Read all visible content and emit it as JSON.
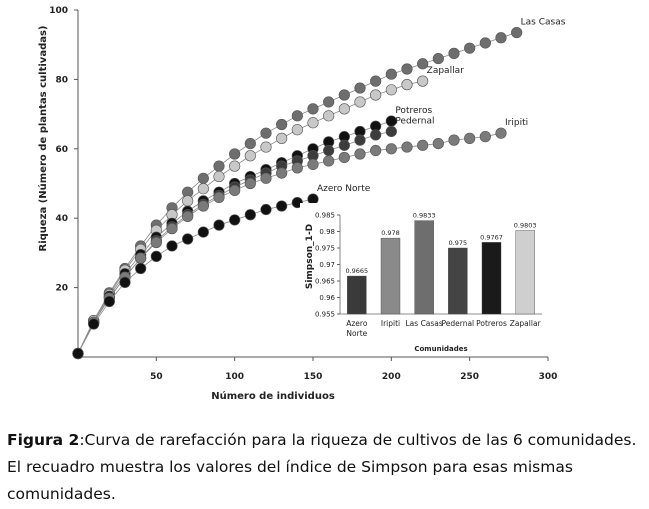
{
  "chart_data": [
    {
      "type": "scatter",
      "xlabel": "Número de individuos",
      "ylabel": "Riqueza (Número de plantas cultivadas)",
      "xlim": [
        0,
        300
      ],
      "ylim": [
        0,
        100
      ],
      "x_ticks": [
        "50",
        "100",
        "150",
        "200",
        "250",
        "300"
      ],
      "y_ticks": [
        "20",
        "40",
        "60",
        "80",
        "100"
      ],
      "grid": false,
      "series": [
        {
          "name": "Las Casas",
          "color": "#6e6e6e",
          "x": [
            0,
            10,
            20,
            30,
            40,
            50,
            60,
            70,
            80,
            90,
            100,
            110,
            120,
            130,
            140,
            150,
            160,
            170,
            180,
            190,
            200,
            210,
            220,
            230,
            240,
            250,
            260,
            270,
            280
          ],
          "y": [
            1,
            10.5,
            18.5,
            25.5,
            32,
            38,
            43,
            47.5,
            51.5,
            55,
            58.5,
            61.5,
            64.5,
            67,
            69.5,
            71.5,
            73.5,
            75.5,
            77.5,
            79.5,
            81.5,
            83,
            84.5,
            86,
            87.5,
            89,
            90.5,
            92,
            93.5
          ]
        },
        {
          "name": "Zapallar",
          "color": "#c8c8c8",
          "x": [
            0,
            10,
            20,
            30,
            40,
            50,
            60,
            70,
            80,
            90,
            100,
            110,
            120,
            130,
            140,
            150,
            160,
            170,
            180,
            190,
            200,
            210,
            220
          ],
          "y": [
            1,
            10.5,
            18,
            25,
            31,
            36.5,
            41,
            45,
            48.5,
            52,
            55,
            58,
            60.5,
            63,
            65.5,
            67.5,
            69.5,
            71.5,
            73.5,
            75.5,
            77,
            78.5,
            79.5
          ]
        },
        {
          "name": "Potreros",
          "color": "#111111",
          "x": [
            0,
            10,
            20,
            30,
            40,
            50,
            60,
            70,
            80,
            90,
            100,
            110,
            120,
            130,
            140,
            150,
            160,
            170,
            180,
            190,
            200
          ],
          "y": [
            1,
            10,
            17.5,
            24,
            29.5,
            34.5,
            38.5,
            42,
            45,
            47.5,
            50,
            52,
            54,
            56,
            58,
            60,
            62,
            63.5,
            65,
            66.5,
            68
          ]
        },
        {
          "name": "Pedernal",
          "color": "#3c3c3c",
          "x": [
            0,
            10,
            20,
            30,
            40,
            50,
            60,
            70,
            80,
            90,
            100,
            110,
            120,
            130,
            140,
            150,
            160,
            170,
            180,
            190,
            200
          ],
          "y": [
            1,
            10,
            17,
            23,
            28.5,
            33.5,
            37.5,
            41,
            44,
            46.5,
            49,
            51,
            53,
            55,
            56.5,
            58,
            59.5,
            61,
            62.5,
            64,
            65
          ]
        },
        {
          "name": "Iripiti",
          "color": "#7a7a7a",
          "x": [
            0,
            10,
            20,
            30,
            40,
            50,
            60,
            70,
            80,
            90,
            100,
            110,
            120,
            130,
            140,
            150,
            160,
            170,
            180,
            190,
            200,
            210,
            220,
            230,
            240,
            250,
            260,
            270
          ],
          "y": [
            1,
            10,
            17,
            23,
            28.5,
            33,
            37,
            40.5,
            43.5,
            46,
            48,
            50,
            51.5,
            53,
            54.5,
            55.5,
            56.5,
            57.5,
            58.5,
            59.5,
            60,
            60.5,
            61,
            61.5,
            62.5,
            63,
            63.5,
            64.5
          ]
        },
        {
          "name": "Azero Norte",
          "color": "#111111",
          "x": [
            0,
            10,
            20,
            30,
            40,
            50,
            60,
            70,
            80,
            90,
            100,
            110,
            120,
            130,
            140,
            150
          ],
          "y": [
            1,
            9.5,
            16,
            21.5,
            25.5,
            29,
            32,
            34,
            36,
            38,
            39.5,
            41,
            42.5,
            43.5,
            44.5,
            45.5
          ]
        }
      ]
    },
    {
      "type": "bar",
      "title": "Comunidades",
      "ylabel": "Simpson_1-D",
      "ylim": [
        0.955,
        0.985
      ],
      "y_ticks": [
        "0.955",
        "0.96",
        "0.965",
        "0.97",
        "0.975",
        "0.98",
        "0.985"
      ],
      "categories": [
        "Azero Norte",
        "Iripiti",
        "Las Casas",
        "Pedernal",
        "Potreros",
        "Zapallar"
      ],
      "category_lines": [
        [
          "Azero",
          "Norte"
        ],
        [
          "Iripiti"
        ],
        [
          "Las Casas"
        ],
        [
          "Pedernal"
        ],
        [
          "Potreros"
        ],
        [
          "Zapallar"
        ]
      ],
      "values": [
        0.9665,
        0.978,
        0.9833,
        0.975,
        0.9767,
        0.9803
      ],
      "value_labels": [
        "0.9665",
        "0.978",
        "0.9833",
        "0.975",
        "0.9767",
        "0.9803"
      ],
      "colors": [
        "#3a3a3a",
        "#8a8a8a",
        "#6e6e6e",
        "#444444",
        "#1a1a1a",
        "#cfcfcf"
      ]
    }
  ],
  "caption": {
    "label": "Figura 2",
    "text": ":Curva de rarefacción para la riqueza de cultivos de las 6 comunidades. El recuadro muestra los valores del índice de Simpson para esas mismas comunidades."
  }
}
